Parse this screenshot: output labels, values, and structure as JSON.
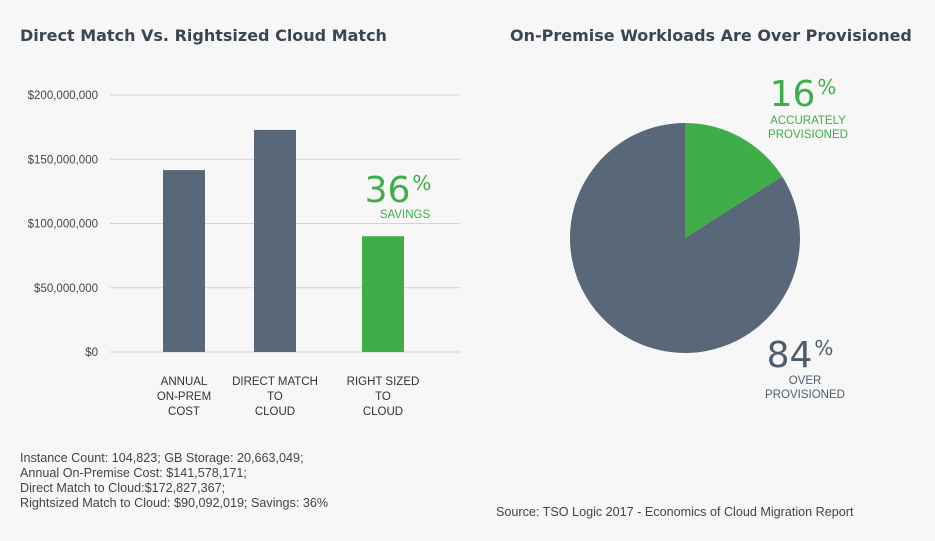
{
  "chart_data": [
    {
      "type": "bar",
      "title": "Direct Match Vs. Rightsized Cloud Match",
      "categories": [
        [
          "ANNUAL",
          "ON-PREM",
          "COST"
        ],
        [
          "DIRECT MATCH",
          "TO",
          "CLOUD"
        ],
        [
          "RIGHT SIZED",
          "TO",
          "CLOUD"
        ]
      ],
      "values": [
        141578171,
        172827367,
        90092019
      ],
      "colors": [
        "#596878",
        "#596878",
        "#3fae49"
      ],
      "yticks": [
        "$0",
        "$50,000,000",
        "$100,000,000",
        "$150,000,000",
        "$200,000,000"
      ],
      "ylim": [
        0,
        200000000
      ],
      "grid": true,
      "annotation": {
        "value": "36",
        "suffix": "%",
        "label": "SAVINGS",
        "color": "#3fae49"
      }
    },
    {
      "type": "pie",
      "title": "On-Premise Workloads Are Over Provisioned",
      "slices": [
        {
          "label": [
            "ACCURATELY",
            "PROVISIONED"
          ],
          "value": 16,
          "suffix": "%",
          "color": "#3fae49"
        },
        {
          "label": [
            "OVER",
            "PROVISIONED"
          ],
          "value": 84,
          "suffix": "%",
          "color": "#596878"
        }
      ]
    }
  ],
  "footnotes": [
    "Instance Count: 104,823; GB Storage: 20,663,049;",
    "Annual On-Premise Cost: $141,578,171;",
    "Direct Match to Cloud:$172,827,367;",
    "Rightsized Match to Cloud: $90,092,019; Savings: 36%"
  ],
  "source": "Source: TSO Logic 2017 - Economics of Cloud Migration Report"
}
